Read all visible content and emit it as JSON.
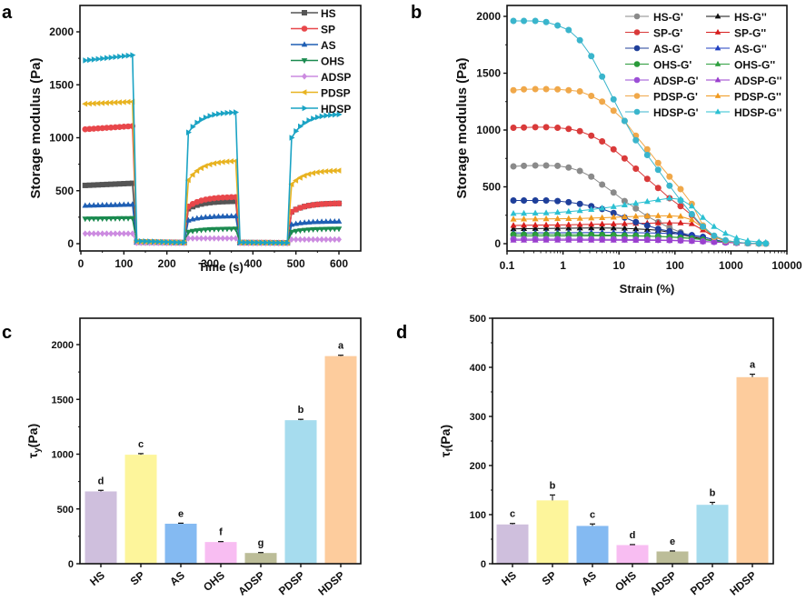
{
  "chart_data": [
    {
      "id": "a",
      "panel_label": "a",
      "type": "line",
      "title": "",
      "xlabel": "Time (s)",
      "ylabel": "Storage modulus (Pa)",
      "xlim": [
        0,
        650
      ],
      "ylim": [
        -100,
        2250
      ],
      "xticks": [
        0,
        100,
        200,
        300,
        400,
        500,
        600
      ],
      "yticks": [
        0,
        500,
        1000,
        1500,
        2000
      ],
      "legend_position": "top-right",
      "phases": [
        {
          "start": 10,
          "end": 120,
          "type": "low-strain"
        },
        {
          "start": 130,
          "end": 240,
          "type": "high-strain"
        },
        {
          "start": 250,
          "end": 360,
          "type": "low-strain"
        },
        {
          "start": 370,
          "end": 480,
          "type": "high-strain"
        },
        {
          "start": 490,
          "end": 600,
          "type": "low-strain"
        }
      ],
      "series": [
        {
          "name": "HS",
          "color": "#555555",
          "marker": "square",
          "phase_values": [
            [
              550,
              570
            ],
            [
              15,
              10
            ],
            [
              330,
              400
            ],
            [
              10,
              8
            ],
            [
              300,
              380
            ]
          ]
        },
        {
          "name": "SP",
          "color": "#e8474b",
          "marker": "circle",
          "phase_values": [
            [
              1080,
              1110
            ],
            [
              15,
              10
            ],
            [
              350,
              440
            ],
            [
              10,
              8
            ],
            [
              300,
              380
            ]
          ]
        },
        {
          "name": "AS",
          "color": "#1f5fb4",
          "marker": "triangle-up",
          "phase_values": [
            [
              360,
              370
            ],
            [
              12,
              8
            ],
            [
              220,
              260
            ],
            [
              8,
              6
            ],
            [
              180,
              210
            ]
          ]
        },
        {
          "name": "OHS",
          "color": "#1a8a4f",
          "marker": "triangle-down",
          "phase_values": [
            [
              235,
              240
            ],
            [
              10,
              8
            ],
            [
              110,
              140
            ],
            [
              8,
              6
            ],
            [
              110,
              140
            ]
          ]
        },
        {
          "name": "ADSP",
          "color": "#cc8be0",
          "marker": "diamond",
          "phase_values": [
            [
              95,
              95
            ],
            [
              8,
              6
            ],
            [
              50,
              50
            ],
            [
              6,
              5
            ],
            [
              40,
              40
            ]
          ]
        },
        {
          "name": "PDSP",
          "color": "#e8b321",
          "marker": "triangle-left",
          "phase_values": [
            [
              1320,
              1340
            ],
            [
              20,
              10
            ],
            [
              600,
              780
            ],
            [
              10,
              8
            ],
            [
              560,
              690
            ]
          ]
        },
        {
          "name": "HDSP",
          "color": "#1aa3c4",
          "marker": "triangle-right",
          "phase_values": [
            [
              1730,
              1780
            ],
            [
              25,
              10
            ],
            [
              1050,
              1240
            ],
            [
              12,
              8
            ],
            [
              1000,
              1220
            ]
          ]
        }
      ]
    },
    {
      "id": "b",
      "panel_label": "b",
      "type": "line",
      "title": "",
      "xlabel": "Strain (%)",
      "ylabel": "Storage modulus (Pa)",
      "xscale": "log",
      "xlim": [
        0.1,
        10000
      ],
      "ylim": [
        -50,
        2100
      ],
      "xticks": [
        "0.1",
        "1",
        "10",
        "100",
        "1000",
        "10000"
      ],
      "yticks": [
        0,
        500,
        1000,
        1500,
        2000
      ],
      "legend_position": "top-right",
      "x": [
        0.13,
        0.2,
        0.32,
        0.5,
        0.8,
        1.26,
        2,
        3.2,
        5,
        8,
        12.6,
        20,
        32,
        50,
        80,
        126,
        200,
        316,
        500,
        800,
        1260,
        2000,
        3160,
        4200
      ],
      "series": [
        {
          "name": "HS-G'",
          "color": "#8a8a8a",
          "marker": "circle",
          "values": [
            680,
            685,
            688,
            688,
            685,
            670,
            640,
            590,
            520,
            450,
            375,
            310,
            240,
            190,
            140,
            100,
            70,
            45,
            28,
            15,
            8,
            4,
            2,
            1
          ]
        },
        {
          "name": "HS-G''",
          "color": "#111111",
          "marker": "triangle",
          "values": [
            130,
            132,
            133,
            134,
            135,
            136,
            137,
            138,
            138,
            137,
            135,
            130,
            125,
            118,
            100,
            80,
            60,
            40,
            22,
            12,
            6,
            3,
            2,
            1
          ]
        },
        {
          "name": "SP-G'",
          "color": "#d93a3a",
          "marker": "circle",
          "values": [
            1020,
            1022,
            1025,
            1025,
            1020,
            1010,
            990,
            950,
            900,
            830,
            750,
            660,
            570,
            490,
            400,
            330,
            250,
            140,
            60,
            25,
            10,
            4,
            2,
            1
          ]
        },
        {
          "name": "SP-G''",
          "color": "#d71f1f",
          "marker": "triangle",
          "values": [
            160,
            162,
            163,
            164,
            165,
            166,
            168,
            170,
            172,
            173,
            175,
            178,
            180,
            182,
            183,
            182,
            175,
            120,
            60,
            25,
            10,
            4,
            2,
            1
          ]
        },
        {
          "name": "AS-G'",
          "color": "#1f3f9a",
          "marker": "circle",
          "values": [
            380,
            380,
            380,
            380,
            375,
            365,
            350,
            330,
            305,
            270,
            230,
            190,
            160,
            130,
            110,
            90,
            75,
            60,
            35,
            15,
            7,
            3,
            2,
            1
          ]
        },
        {
          "name": "AS-G''",
          "color": "#1f3fc0",
          "marker": "triangle",
          "values": [
            95,
            95,
            96,
            96,
            96,
            97,
            97,
            98,
            98,
            98,
            97,
            96,
            95,
            93,
            90,
            85,
            75,
            60,
            35,
            15,
            7,
            3,
            2,
            1
          ]
        },
        {
          "name": "OHS-G'",
          "color": "#2a9a3a",
          "marker": "circle",
          "values": [
            80,
            80,
            80,
            80,
            80,
            80,
            79,
            78,
            77,
            75,
            72,
            70,
            67,
            63,
            58,
            52,
            45,
            35,
            25,
            15,
            8,
            4,
            2,
            1
          ]
        },
        {
          "name": "OHS-G''",
          "color": "#30a040",
          "marker": "triangle",
          "values": [
            65,
            65,
            66,
            66,
            66,
            67,
            67,
            68,
            68,
            68,
            68,
            67,
            66,
            64,
            60,
            55,
            48,
            38,
            25,
            15,
            8,
            4,
            2,
            1
          ]
        },
        {
          "name": "ADSP-G'",
          "color": "#9b4fd6",
          "marker": "circle",
          "values": [
            40,
            40,
            40,
            40,
            40,
            40,
            39,
            39,
            38,
            38,
            37,
            36,
            35,
            33,
            31,
            28,
            25,
            20,
            15,
            10,
            6,
            3,
            2,
            1
          ]
        },
        {
          "name": "ADSP-G''",
          "color": "#9a3fce",
          "marker": "triangle",
          "values": [
            30,
            30,
            30,
            30,
            30,
            30,
            30,
            30,
            30,
            30,
            30,
            29,
            29,
            28,
            27,
            25,
            22,
            18,
            14,
            10,
            6,
            3,
            2,
            1
          ]
        },
        {
          "name": "PDSP-G'",
          "color": "#f0a84a",
          "marker": "circle",
          "values": [
            1350,
            1358,
            1360,
            1360,
            1358,
            1350,
            1340,
            1300,
            1250,
            1170,
            1080,
            950,
            830,
            710,
            590,
            480,
            350,
            160,
            60,
            25,
            10,
            4,
            2,
            1
          ]
        },
        {
          "name": "PDSP-G''",
          "color": "#f09a20",
          "marker": "triangle",
          "values": [
            215,
            216,
            217,
            218,
            219,
            220,
            222,
            225,
            228,
            232,
            236,
            240,
            243,
            245,
            245,
            240,
            210,
            140,
            70,
            30,
            12,
            5,
            2,
            1
          ]
        },
        {
          "name": "HDSP-G'",
          "color": "#3ab5cc",
          "marker": "circle",
          "values": [
            1960,
            1960,
            1960,
            1950,
            1920,
            1880,
            1790,
            1650,
            1470,
            1270,
            1080,
            910,
            780,
            650,
            510,
            380,
            260,
            150,
            70,
            30,
            12,
            5,
            2,
            1
          ]
        },
        {
          "name": "HDSP-G''",
          "color": "#2cc0d2",
          "marker": "triangle",
          "values": [
            265,
            266,
            268,
            270,
            275,
            282,
            290,
            300,
            312,
            325,
            340,
            355,
            370,
            385,
            400,
            390,
            330,
            230,
            150,
            90,
            50,
            25,
            15,
            10
          ]
        }
      ]
    },
    {
      "id": "c",
      "panel_label": "c",
      "type": "bar",
      "title": "",
      "xlabel": "",
      "ylabel": "τy(Pa)",
      "ylabel_main": "τ",
      "ylabel_sub": "y",
      "ylabel_unit": "(Pa)",
      "ylim": [
        0,
        2250
      ],
      "yticks": [
        0,
        500,
        1000,
        1500,
        2000
      ],
      "categories": [
        "HS",
        "SP",
        "AS",
        "OHS",
        "ADSP",
        "PDSP",
        "HDSP"
      ],
      "values": [
        660,
        995,
        365,
        198,
        98,
        1310,
        1895
      ],
      "errors": [
        10,
        10,
        5,
        4,
        4,
        8,
        8
      ],
      "letters": [
        "d",
        "c",
        "e",
        "f",
        "g",
        "b",
        "a"
      ],
      "colors": [
        "#cfbfdd",
        "#fdf59b",
        "#84baf2",
        "#f8bdf2",
        "#bcbd98",
        "#a6dcee",
        "#fdcc9d"
      ]
    },
    {
      "id": "d",
      "panel_label": "d",
      "type": "bar",
      "title": "",
      "xlabel": "",
      "ylabel": "τf(Pa)",
      "ylabel_main": "τ",
      "ylabel_sub": "f",
      "ylabel_unit": "(Pa)",
      "ylim": [
        0,
        500
      ],
      "yticks": [
        0,
        100,
        200,
        300,
        400,
        500
      ],
      "categories": [
        "HS",
        "SP",
        "AS",
        "OHS",
        "ADSP",
        "PDSP",
        "HDSP"
      ],
      "values": [
        80,
        129,
        77,
        38,
        25,
        120,
        380
      ],
      "errors": [
        2,
        11,
        4,
        1,
        1,
        5,
        6
      ],
      "letters": [
        "c",
        "b",
        "c",
        "d",
        "e",
        "b",
        "a"
      ],
      "colors": [
        "#cfbfdd",
        "#fdf59b",
        "#84baf2",
        "#f8bdf2",
        "#bcbd98",
        "#a6dcee",
        "#fdcc9d"
      ]
    }
  ]
}
